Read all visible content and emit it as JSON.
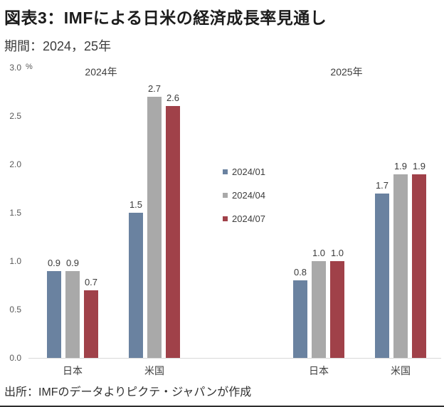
{
  "header": {
    "title": "図表3：IMFによる日米の経済成長率見通し",
    "subtitle": "期間：2024，25年"
  },
  "footer": {
    "source": "出所：IMFのデータよりピクテ・ジャパンが作成"
  },
  "chart_data": {
    "type": "bar",
    "unit": "%",
    "ylim": [
      0,
      3.0
    ],
    "yticks": [
      0.0,
      0.5,
      1.0,
      1.5,
      2.0,
      2.5,
      3.0
    ],
    "grid": false,
    "legend_position": "center-between-panels",
    "panels": [
      {
        "label": "2024年"
      },
      {
        "label": "2025年"
      }
    ],
    "series": [
      {
        "name": "2024/01",
        "color": "#6a82a0"
      },
      {
        "name": "2024/04",
        "color": "#a9a9a9"
      },
      {
        "name": "2024/07",
        "color": "#a04149"
      }
    ],
    "groups": [
      {
        "panel": "2024年",
        "category": "日本",
        "values": [
          0.9,
          0.9,
          0.7
        ]
      },
      {
        "panel": "2024年",
        "category": "米国",
        "values": [
          1.5,
          2.7,
          2.6
        ]
      },
      {
        "panel": "2025年",
        "category": "日本",
        "values": [
          0.8,
          1.0,
          1.0
        ]
      },
      {
        "panel": "2025年",
        "category": "米国",
        "values": [
          1.7,
          1.9,
          1.9
        ]
      }
    ]
  }
}
